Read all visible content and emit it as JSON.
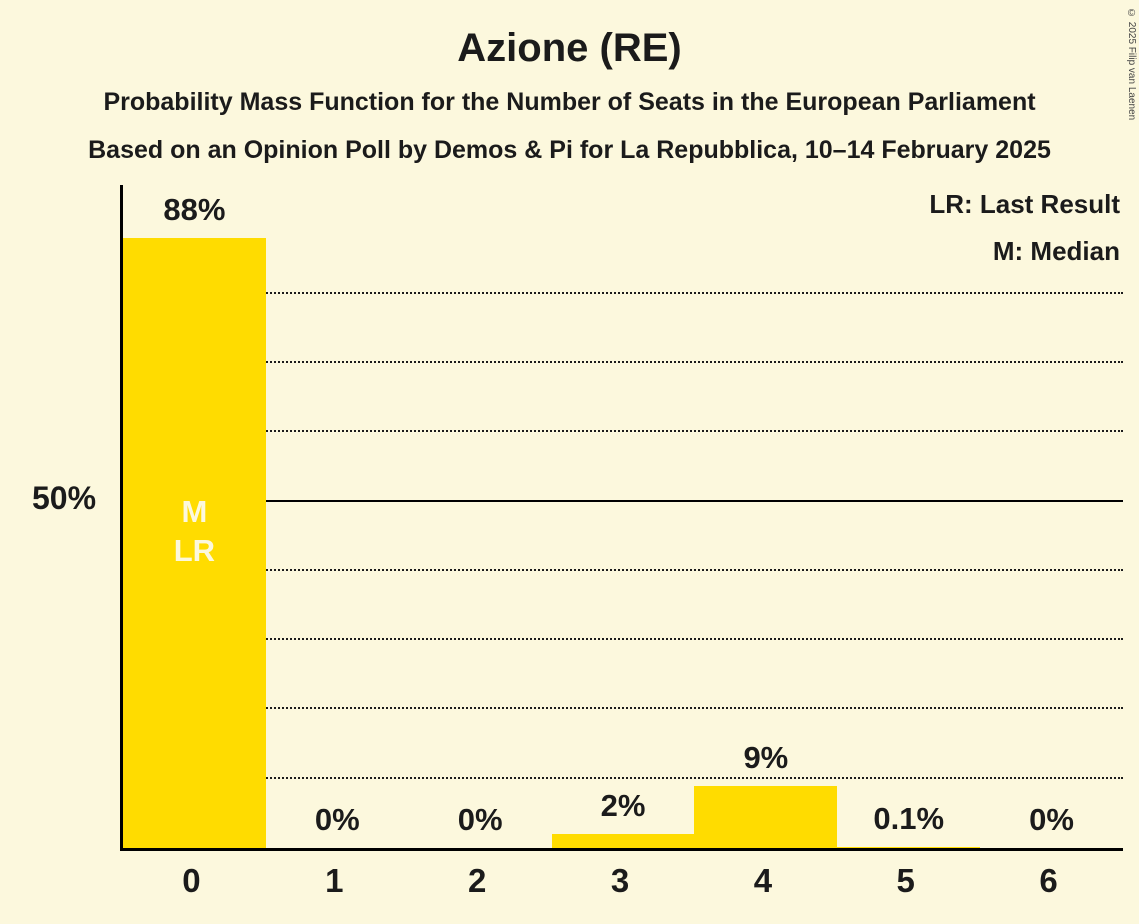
{
  "title": "Azione (RE)",
  "subtitle_line1": "Probability Mass Function for the Number of Seats in the European Parliament",
  "subtitle_line2": "Based on an Opinion Poll by Demos & Pi for La Repubblica, 10–14 February 2025",
  "legend": {
    "last_result": "LR: Last Result",
    "median": "M: Median"
  },
  "y_axis_label": "50%",
  "copyright": "© 2025 Filip van Laenen",
  "colors": {
    "background": "#FCF8DD",
    "bar": "#FFDC00",
    "text": "#1B1B1B"
  },
  "chart_data": {
    "type": "bar",
    "title": "Azione (RE)",
    "categories": [
      "0",
      "1",
      "2",
      "3",
      "4",
      "5",
      "6"
    ],
    "values": [
      88,
      0,
      0,
      2,
      9,
      0.1,
      0
    ],
    "value_labels": [
      "88%",
      "0%",
      "0%",
      "2%",
      "9%",
      "0.1%",
      "0%"
    ],
    "ylim": [
      0,
      95.7
    ],
    "solid_gridline_at": 50,
    "dotted_gridlines_at": [
      10,
      20,
      30,
      40,
      60,
      70,
      80
    ],
    "legend_position": "top-right",
    "median_bar": "0",
    "last_result_bar": "0",
    "bar_annotation": {
      "bar_index": 0,
      "lines": [
        "M",
        "LR"
      ]
    }
  }
}
